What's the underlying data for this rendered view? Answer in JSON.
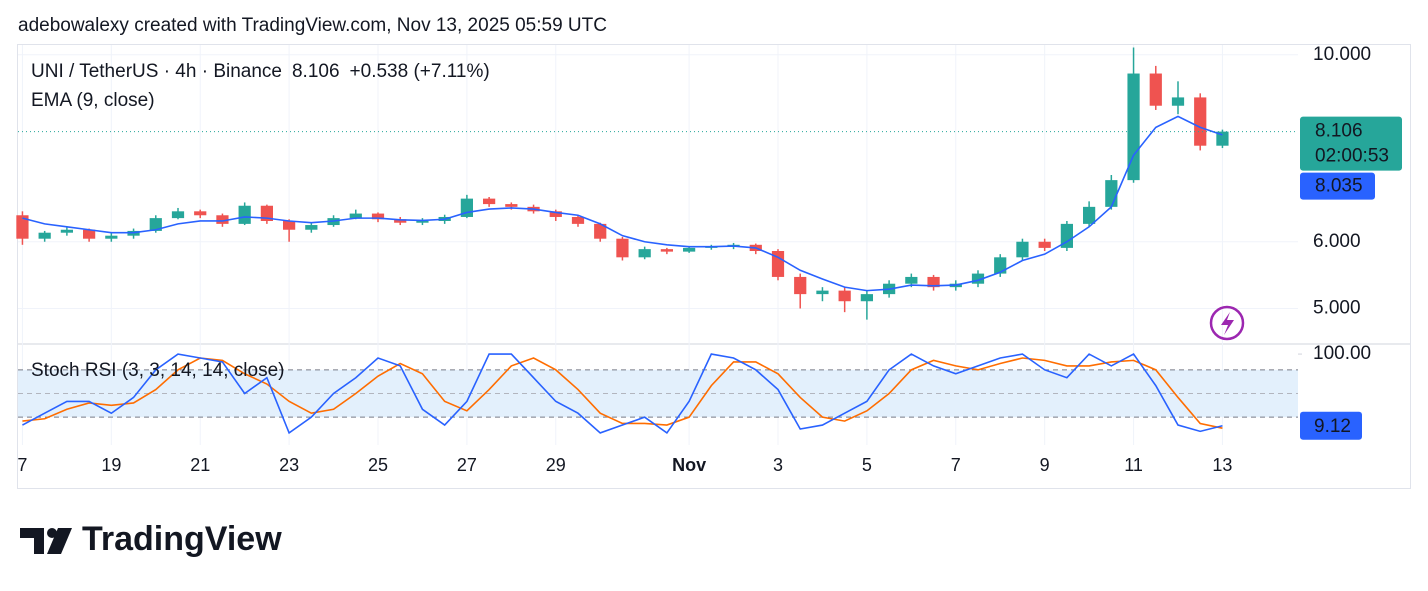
{
  "header": {
    "attribution": "adebowalexy created with TradingView.com, Nov 13, 2025 05:59 UTC",
    "change_label": "+0.538 (+7.11%)",
    "countdown": "02:00:53"
  },
  "footer": {
    "brand": "TradingView"
  },
  "chart_data": [
    {
      "type": "candlestick",
      "title": "UNI / TetherUS · 4h · Binance",
      "log_scale": true,
      "grid": true,
      "up_color": "#26a69a",
      "down_color": "#ef5350",
      "x": [
        0,
        0.5,
        1,
        1.5,
        2,
        2.5,
        3,
        3.5,
        4,
        4.5,
        5,
        5.5,
        6,
        6.5,
        7,
        7.5,
        8,
        8.5,
        9,
        9.5,
        10,
        10.5,
        11,
        11.5,
        12,
        12.5,
        13,
        13.5,
        14,
        14.5,
        15,
        15.5,
        16,
        16.5,
        17,
        17.5,
        18,
        18.5,
        19,
        19.5,
        20,
        20.5,
        21,
        21.5,
        22,
        22.5,
        23,
        23.5,
        24,
        24.5,
        25,
        25.5,
        26,
        26.5,
        27
      ],
      "open": [
        6.45,
        6.05,
        6.15,
        6.2,
        6.05,
        6.1,
        6.18,
        6.4,
        6.52,
        6.45,
        6.3,
        6.62,
        6.35,
        6.2,
        6.28,
        6.4,
        6.48,
        6.38,
        6.32,
        6.35,
        6.42,
        6.75,
        6.65,
        6.6,
        6.52,
        6.42,
        6.3,
        6.05,
        5.75,
        5.88,
        5.84,
        5.9,
        5.92,
        5.95,
        5.85,
        5.45,
        5.2,
        5.25,
        5.1,
        5.2,
        5.35,
        5.45,
        5.3,
        5.35,
        5.5,
        5.75,
        6.0,
        5.9,
        6.3,
        6.6,
        7.1,
        9.5,
        8.7,
        8.9,
        7.8
      ],
      "high": [
        6.52,
        6.18,
        6.25,
        6.22,
        6.15,
        6.22,
        6.45,
        6.58,
        6.55,
        6.48,
        6.68,
        6.64,
        6.38,
        6.32,
        6.45,
        6.55,
        6.5,
        6.42,
        6.4,
        6.46,
        6.82,
        6.78,
        6.68,
        6.64,
        6.55,
        6.45,
        6.32,
        6.08,
        5.92,
        5.9,
        5.93,
        5.95,
        5.98,
        5.97,
        5.88,
        5.5,
        5.3,
        5.3,
        5.25,
        5.4,
        5.5,
        5.48,
        5.4,
        5.55,
        5.8,
        6.05,
        6.05,
        6.35,
        6.7,
        7.2,
        10.2,
        9.7,
        9.3,
        9.0,
        8.15
      ],
      "low": [
        5.95,
        6.0,
        6.1,
        6.0,
        6.0,
        6.05,
        6.15,
        6.38,
        6.4,
        6.25,
        6.28,
        6.3,
        6.0,
        6.15,
        6.25,
        6.38,
        6.33,
        6.28,
        6.28,
        6.3,
        6.4,
        6.6,
        6.55,
        6.48,
        6.35,
        6.25,
        6.0,
        5.7,
        5.72,
        5.8,
        5.82,
        5.87,
        5.88,
        5.8,
        5.4,
        5.0,
        5.1,
        4.95,
        4.85,
        5.15,
        5.3,
        5.25,
        5.25,
        5.3,
        5.45,
        5.7,
        5.85,
        5.85,
        6.25,
        6.55,
        7.05,
        8.6,
        8.5,
        7.7,
        7.75
      ],
      "close": [
        6.05,
        6.15,
        6.2,
        6.05,
        6.1,
        6.18,
        6.4,
        6.52,
        6.45,
        6.3,
        6.62,
        6.35,
        6.2,
        6.28,
        6.4,
        6.48,
        6.38,
        6.32,
        6.35,
        6.42,
        6.75,
        6.65,
        6.6,
        6.52,
        6.42,
        6.3,
        6.05,
        5.75,
        5.88,
        5.84,
        5.9,
        5.92,
        5.95,
        5.85,
        5.45,
        5.2,
        5.25,
        5.1,
        5.2,
        5.35,
        5.45,
        5.3,
        5.35,
        5.5,
        5.75,
        6.0,
        5.9,
        6.3,
        6.6,
        7.1,
        9.5,
        8.7,
        8.9,
        7.8,
        8.106
      ],
      "series": [
        {
          "name": "EMA (9, close)",
          "color": "#2962ff",
          "values": [
            6.4,
            6.3,
            6.25,
            6.2,
            6.15,
            6.15,
            6.2,
            6.3,
            6.35,
            6.35,
            6.42,
            6.4,
            6.35,
            6.32,
            6.35,
            6.4,
            6.4,
            6.37,
            6.36,
            6.38,
            6.5,
            6.56,
            6.58,
            6.56,
            6.5,
            6.45,
            6.3,
            6.1,
            6.0,
            5.95,
            5.92,
            5.92,
            5.93,
            5.9,
            5.75,
            5.55,
            5.42,
            5.3,
            5.25,
            5.27,
            5.33,
            5.32,
            5.33,
            5.4,
            5.52,
            5.7,
            5.8,
            6.0,
            6.25,
            6.6,
            7.6,
            8.2,
            8.45,
            8.2,
            8.035
          ]
        }
      ],
      "xlim": [
        -0.1,
        28.7
      ],
      "xticks": [
        {
          "value": 0,
          "label": "7"
        },
        {
          "value": 2,
          "label": "19"
        },
        {
          "value": 4,
          "label": "21"
        },
        {
          "value": 6,
          "label": "23"
        },
        {
          "value": 8,
          "label": "25"
        },
        {
          "value": 10,
          "label": "27"
        },
        {
          "value": 12,
          "label": "29"
        },
        {
          "value": 15,
          "label": "Nov"
        },
        {
          "value": 17,
          "label": "3"
        },
        {
          "value": 19,
          "label": "5"
        },
        {
          "value": 21,
          "label": "7"
        },
        {
          "value": 23,
          "label": "9"
        },
        {
          "value": 25,
          "label": "11"
        },
        {
          "value": 27,
          "label": "13"
        }
      ],
      "ylim": [
        4.55,
        10.27
      ],
      "yticks": [
        {
          "value": 5,
          "label": "5.000"
        },
        {
          "value": 6,
          "label": "6.000"
        },
        {
          "value": 10,
          "label": "10.000"
        }
      ]
    },
    {
      "type": "line",
      "title": "Stoch RSI (3, 3, 14, 14, close)",
      "band": [
        20,
        80
      ],
      "midline": 50,
      "band_color": "#e3f0fc",
      "series": [
        {
          "color": "#2962ff",
          "values": [
            10,
            25,
            40,
            40,
            25,
            45,
            80,
            100,
            95,
            90,
            50,
            70,
            0,
            20,
            50,
            70,
            95,
            85,
            30,
            10,
            40,
            100,
            100,
            70,
            40,
            25,
            0,
            10,
            20,
            0,
            40,
            100,
            95,
            80,
            55,
            5,
            10,
            25,
            40,
            80,
            100,
            85,
            75,
            85,
            95,
            100,
            80,
            70,
            100,
            85,
            100,
            60,
            10,
            2,
            9.12
          ]
        },
        {
          "color": "#ff6d00",
          "values": [
            15,
            18,
            30,
            38,
            35,
            38,
            55,
            80,
            95,
            92,
            75,
            62,
            40,
            25,
            30,
            50,
            72,
            88,
            75,
            40,
            28,
            55,
            85,
            95,
            80,
            55,
            25,
            12,
            12,
            10,
            20,
            60,
            90,
            90,
            75,
            45,
            20,
            15,
            28,
            50,
            80,
            92,
            85,
            80,
            88,
            95,
            92,
            85,
            85,
            90,
            92,
            80,
            45,
            12,
            6
          ]
        }
      ],
      "ylim": [
        -15.3,
        111.5
      ],
      "yticks": [
        {
          "value": 100,
          "label": "100.00"
        }
      ]
    }
  ]
}
